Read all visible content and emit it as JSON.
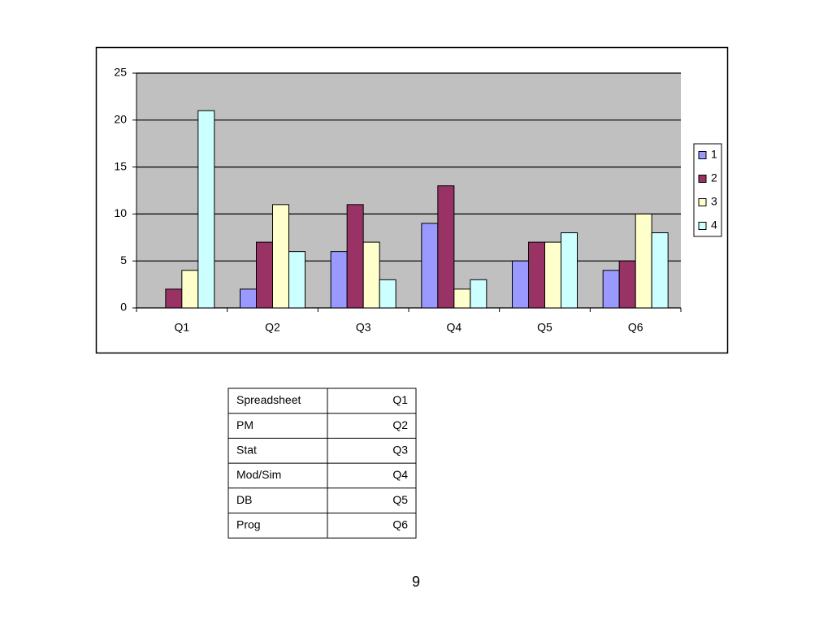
{
  "chart_data": {
    "type": "bar",
    "categories": [
      "Q1",
      "Q2",
      "Q3",
      "Q4",
      "Q5",
      "Q6"
    ],
    "series": [
      {
        "name": "1",
        "color": "#9999ff",
        "values": [
          0,
          2,
          6,
          9,
          5,
          4
        ]
      },
      {
        "name": "2",
        "color": "#993366",
        "values": [
          2,
          7,
          11,
          13,
          7,
          5
        ]
      },
      {
        "name": "3",
        "color": "#ffffcc",
        "values": [
          4,
          11,
          7,
          2,
          7,
          10
        ]
      },
      {
        "name": "4",
        "color": "#ccffff",
        "values": [
          21,
          6,
          3,
          3,
          8,
          8
        ]
      }
    ],
    "ylim": [
      0,
      25
    ],
    "yticks": [
      0,
      5,
      10,
      15,
      20,
      25
    ],
    "grid": true,
    "legend": "right",
    "plot_background": "#c0c0c0"
  },
  "table": {
    "rows": [
      [
        "Spreadsheet",
        "Q1"
      ],
      [
        "PM",
        "Q2"
      ],
      [
        "Stat",
        "Q3"
      ],
      [
        "Mod/Sim",
        "Q4"
      ],
      [
        "DB",
        "Q5"
      ],
      [
        "Prog",
        "Q6"
      ]
    ]
  },
  "page_number": "9"
}
